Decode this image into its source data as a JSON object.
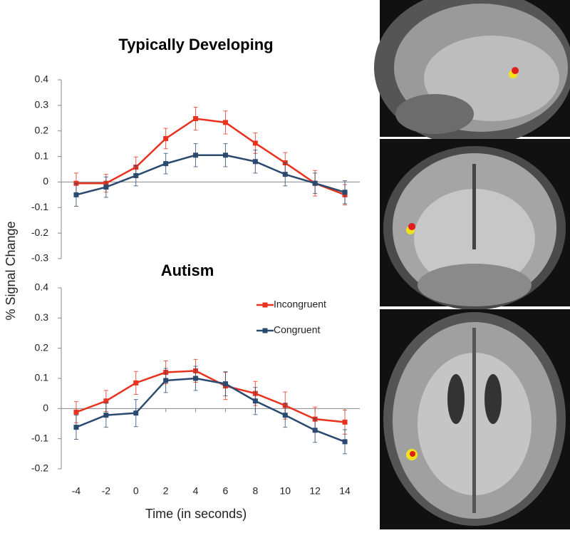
{
  "chart_data": [
    {
      "type": "line",
      "title": "Typically Developing",
      "ylabel": "% Signal Change",
      "x": [
        -4,
        -2,
        0,
        2,
        4,
        6,
        8,
        10,
        12,
        14
      ],
      "xlim": [
        -5,
        15
      ],
      "ylim": [
        -0.3,
        0.4
      ],
      "yticks": [
        -0.3,
        -0.2,
        -0.1,
        0,
        0.1,
        0.2,
        0.3,
        0.4
      ],
      "series": [
        {
          "name": "Incongruent",
          "color": "#e8321e",
          "values": [
            -0.005,
            -0.005,
            0.058,
            0.17,
            0.248,
            0.233,
            0.152,
            0.075,
            -0.005,
            -0.05
          ],
          "errors": [
            0.04,
            0.035,
            0.04,
            0.04,
            0.045,
            0.045,
            0.04,
            0.04,
            0.05,
            0.04
          ]
        },
        {
          "name": "Congruent",
          "color": "#2b4a6f",
          "values": [
            -0.05,
            -0.02,
            0.025,
            0.072,
            0.105,
            0.105,
            0.08,
            0.03,
            -0.005,
            -0.04
          ],
          "errors": [
            0.045,
            0.04,
            0.04,
            0.04,
            0.045,
            0.045,
            0.045,
            0.045,
            0.04,
            0.045
          ]
        }
      ]
    },
    {
      "type": "line",
      "title": "Autism",
      "xlabel": "Time (in seconds)",
      "x": [
        -4,
        -2,
        0,
        2,
        4,
        6,
        8,
        10,
        12,
        14
      ],
      "xlim": [
        -5,
        15
      ],
      "xticks": [
        -4,
        -2,
        0,
        2,
        4,
        6,
        8,
        10,
        12,
        14
      ],
      "ylim": [
        -0.2,
        0.4
      ],
      "yticks": [
        -0.2,
        -0.1,
        0,
        0.1,
        0.2,
        0.3,
        0.4
      ],
      "legend": "upper right",
      "series": [
        {
          "name": "Incongruent",
          "color": "#e8321e",
          "values": [
            -0.012,
            0.025,
            0.085,
            0.12,
            0.125,
            0.075,
            0.05,
            0.01,
            -0.035,
            -0.045
          ],
          "errors": [
            0.035,
            0.035,
            0.038,
            0.038,
            0.038,
            0.045,
            0.04,
            0.045,
            0.04,
            0.04
          ]
        },
        {
          "name": "Congruent",
          "color": "#2b4a6f",
          "values": [
            -0.062,
            -0.022,
            -0.015,
            0.093,
            0.1,
            0.082,
            0.025,
            -0.022,
            -0.072,
            -0.11
          ],
          "errors": [
            0.04,
            0.04,
            0.045,
            0.04,
            0.04,
            0.04,
            0.045,
            0.04,
            0.04,
            0.04
          ]
        }
      ]
    }
  ]
}
